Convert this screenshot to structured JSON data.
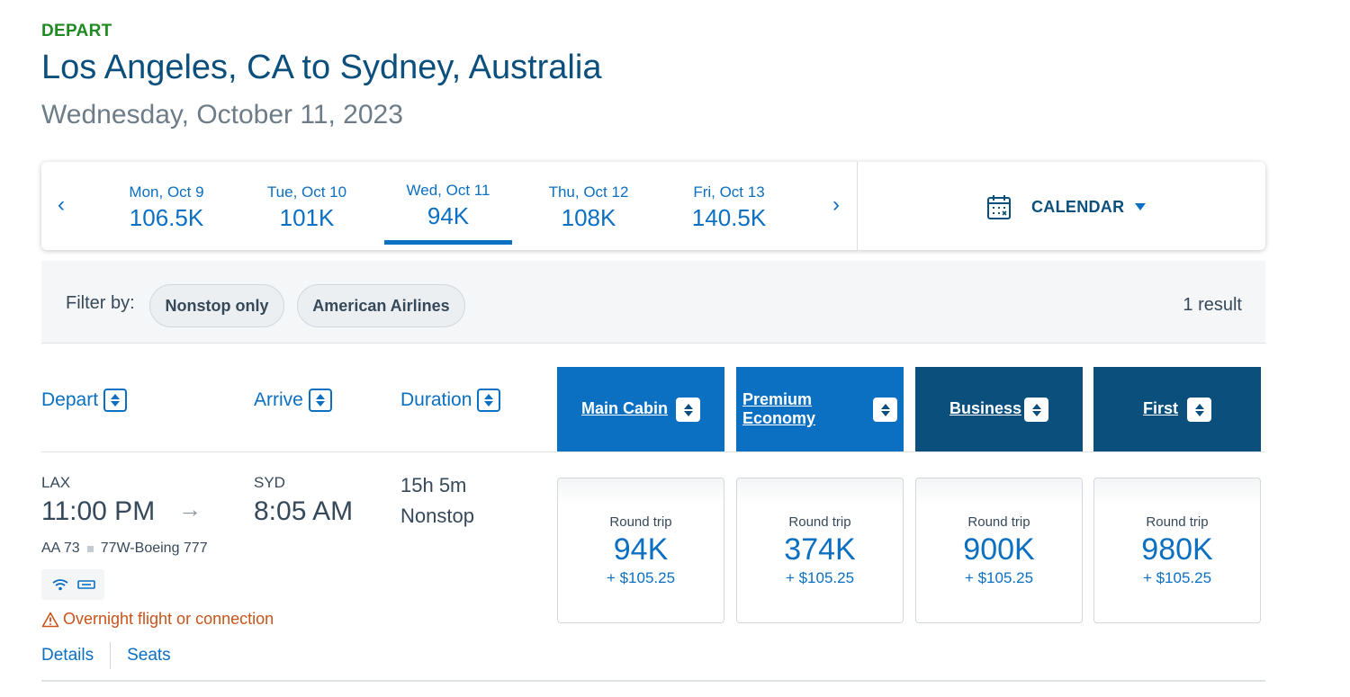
{
  "header": {
    "direction": "DEPART",
    "route": "Los Angeles, CA to Sydney, Australia",
    "date": "Wednesday, October 11, 2023"
  },
  "date_strip": {
    "prev_icon": "chevron-left-icon",
    "next_icon": "chevron-right-icon",
    "dates": [
      {
        "label": "Mon, Oct 9",
        "price": "106.5K",
        "selected": false
      },
      {
        "label": "Tue, Oct 10",
        "price": "101K",
        "selected": false
      },
      {
        "label": "Wed, Oct 11",
        "price": "94K",
        "selected": true
      },
      {
        "label": "Thu, Oct 12",
        "price": "108K",
        "selected": false
      },
      {
        "label": "Fri, Oct 13",
        "price": "140.5K",
        "selected": false
      }
    ],
    "calendar_label": "CALENDAR"
  },
  "filter": {
    "label": "Filter by:",
    "pills": [
      "Nonstop only",
      "American Airlines"
    ],
    "result_count": "1 result"
  },
  "columns": {
    "depart": "Depart",
    "arrive": "Arrive",
    "duration": "Duration",
    "cabins": [
      {
        "name_line1": "Main Cabin",
        "name_line2": "",
        "color": "#0b6fc2"
      },
      {
        "name_line1": "Premium",
        "name_line2": "Economy",
        "color": "#0b6fc2"
      },
      {
        "name_line1": "Business",
        "name_line2": "",
        "color": "#0b4f7c"
      },
      {
        "name_line1": "First",
        "name_line2": "",
        "color": "#0b4f7c"
      }
    ]
  },
  "flight": {
    "origin": "LAX",
    "depart_time": "11:00 PM",
    "destination": "SYD",
    "arrive_time": "8:05 AM",
    "arrow": "→",
    "duration": "15h 5m",
    "stops": "Nonstop",
    "flight_number": "AA 73",
    "aircraft": "77W-Boeing 777",
    "amenities": [
      "wifi-icon",
      "power-outlet-icon"
    ],
    "warning": "Overnight flight or connection",
    "links": [
      "Details",
      "Seats"
    ],
    "fares": [
      {
        "trip": "Round trip",
        "miles": "94K",
        "tax": "+ $105.25"
      },
      {
        "trip": "Round trip",
        "miles": "374K",
        "tax": "+ $105.25"
      },
      {
        "trip": "Round trip",
        "miles": "900K",
        "tax": "+ $105.25"
      },
      {
        "trip": "Round trip",
        "miles": "980K",
        "tax": "+ $105.25"
      }
    ]
  },
  "colors": {
    "accent_blue": "#0b6fc2",
    "dark_blue": "#0b4f7c",
    "depart_green": "#1f8a1f",
    "warning_orange": "#c8541a"
  }
}
